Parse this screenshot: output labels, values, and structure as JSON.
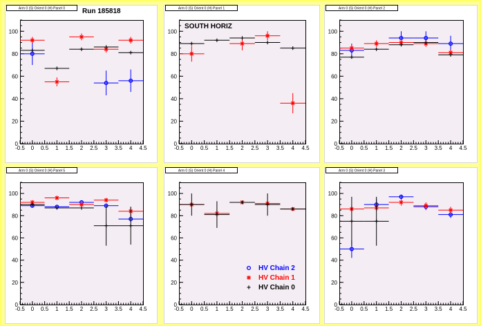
{
  "chart_data": [
    {
      "type": "scatter",
      "title": "Arm 0 (S) Orient 0 (H) Panel 0",
      "annotation": "Run 185818",
      "xlim": [
        -0.5,
        4.5
      ],
      "ylim": [
        0,
        110
      ],
      "xticks": [
        "-0.5",
        "0",
        "0.5",
        "1",
        "1.5",
        "2",
        "2.5",
        "3",
        "3.5",
        "4",
        "4.5"
      ],
      "yticks": [
        "0",
        "20",
        "40",
        "60",
        "80",
        "100"
      ],
      "series": [
        {
          "color": "#0000ff",
          "marker": "circle",
          "points": [
            {
              "x": 0,
              "y": 80,
              "err": 10
            },
            {
              "x": 3,
              "y": 54,
              "err": 11
            },
            {
              "x": 4,
              "y": 56,
              "err": 10
            }
          ]
        },
        {
          "color": "#ff0000",
          "marker": "star",
          "points": [
            {
              "x": 0,
              "y": 92,
              "err": 3
            },
            {
              "x": 1,
              "y": 55,
              "err": 4
            },
            {
              "x": 2,
              "y": 95,
              "err": 3
            },
            {
              "x": 3,
              "y": 84,
              "err": 3
            },
            {
              "x": 4,
              "y": 92,
              "err": 3
            }
          ]
        },
        {
          "color": "#000000",
          "marker": "cross",
          "points": [
            {
              "x": 0,
              "y": 83,
              "err": 0
            },
            {
              "x": 1,
              "y": 67,
              "err": 0
            },
            {
              "x": 2,
              "y": 84,
              "err": 0
            },
            {
              "x": 3,
              "y": 86,
              "err": 0
            },
            {
              "x": 4,
              "y": 81,
              "err": 0
            }
          ]
        }
      ]
    },
    {
      "type": "scatter",
      "title": "Arm 0 (S) Orient 0 (H) Panel 1",
      "annotation": "SOUTH HORIZ",
      "xlim": [
        -0.5,
        4.5
      ],
      "ylim": [
        0,
        110
      ],
      "xticks": [
        "-0.5",
        "0",
        "0.5",
        "1",
        "1.5",
        "2",
        "2.5",
        "3",
        "3.5",
        "4",
        "4.5"
      ],
      "yticks": [
        "0",
        "20",
        "40",
        "60",
        "80",
        "100"
      ],
      "series": [
        {
          "color": "#0000ff",
          "marker": "circle",
          "points": []
        },
        {
          "color": "#ff0000",
          "marker": "star",
          "points": [
            {
              "x": 0,
              "y": 80,
              "err": 7
            },
            {
              "x": 2,
              "y": 89,
              "err": 6
            },
            {
              "x": 3,
              "y": 96,
              "err": 4
            },
            {
              "x": 4,
              "y": 36,
              "err": 9
            }
          ]
        },
        {
          "color": "#000000",
          "marker": "cross",
          "points": [
            {
              "x": 0,
              "y": 89,
              "err": 0
            },
            {
              "x": 1,
              "y": 92,
              "err": 0
            },
            {
              "x": 2,
              "y": 94,
              "err": 0
            },
            {
              "x": 3,
              "y": 90,
              "err": 0
            },
            {
              "x": 4,
              "y": 85,
              "err": 0
            }
          ]
        }
      ]
    },
    {
      "type": "scatter",
      "title": "Arm 0 (S) Orient 0 (H) Panel 2",
      "annotation": "",
      "xlim": [
        -0.5,
        4.5
      ],
      "ylim": [
        0,
        110
      ],
      "xticks": [
        "-0.5",
        "0",
        "0.5",
        "1",
        "1.5",
        "2",
        "2.5",
        "3",
        "3.5",
        "4",
        "4.5"
      ],
      "yticks": [
        "0",
        "20",
        "40",
        "60",
        "80",
        "100"
      ],
      "series": [
        {
          "color": "#0000ff",
          "marker": "circle",
          "points": [
            {
              "x": 0,
              "y": 83,
              "err": 6
            },
            {
              "x": 2,
              "y": 94,
              "err": 6
            },
            {
              "x": 3,
              "y": 94,
              "err": 6
            },
            {
              "x": 4,
              "y": 89,
              "err": 7
            }
          ]
        },
        {
          "color": "#ff0000",
          "marker": "star",
          "points": [
            {
              "x": 0,
              "y": 85,
              "err": 3
            },
            {
              "x": 1,
              "y": 89,
              "err": 3
            },
            {
              "x": 2,
              "y": 90,
              "err": 3
            },
            {
              "x": 3,
              "y": 89,
              "err": 3
            },
            {
              "x": 4,
              "y": 81,
              "err": 3
            }
          ]
        },
        {
          "color": "#000000",
          "marker": "cross",
          "points": [
            {
              "x": 0,
              "y": 77,
              "err": 0
            },
            {
              "x": 1,
              "y": 84,
              "err": 0
            },
            {
              "x": 2,
              "y": 88,
              "err": 0
            },
            {
              "x": 3,
              "y": 90,
              "err": 0
            },
            {
              "x": 4,
              "y": 79,
              "err": 0
            }
          ]
        }
      ]
    },
    {
      "type": "scatter",
      "title": "Arm 0 (S) Orient 0 (H) Panel 5",
      "annotation": "",
      "xlim": [
        -0.5,
        4.5
      ],
      "ylim": [
        0,
        110
      ],
      "xticks": [
        "-0.5",
        "0",
        "0.5",
        "1",
        "1.5",
        "2",
        "2.5",
        "3",
        "3.5",
        "4",
        "4.5"
      ],
      "yticks": [
        "0",
        "20",
        "40",
        "60",
        "80",
        "100"
      ],
      "series": [
        {
          "color": "#0000ff",
          "marker": "circle",
          "points": [
            {
              "x": 0,
              "y": 89,
              "err": 1
            },
            {
              "x": 1,
              "y": 88,
              "err": 1
            },
            {
              "x": 2,
              "y": 92,
              "err": 1
            },
            {
              "x": 3,
              "y": 89,
              "err": 2
            },
            {
              "x": 4,
              "y": 77,
              "err": 3
            }
          ]
        },
        {
          "color": "#ff0000",
          "marker": "star",
          "points": [
            {
              "x": 0,
              "y": 92,
              "err": 2
            },
            {
              "x": 1,
              "y": 96,
              "err": 2
            },
            {
              "x": 2,
              "y": 90,
              "err": 3
            },
            {
              "x": 3,
              "y": 94,
              "err": 2
            },
            {
              "x": 4,
              "y": 84,
              "err": 4
            }
          ]
        },
        {
          "color": "#000000",
          "marker": "cross",
          "points": [
            {
              "x": 0,
              "y": 90,
              "err": 0
            },
            {
              "x": 1,
              "y": 87,
              "err": 0
            },
            {
              "x": 2,
              "y": 87,
              "err": 0
            },
            {
              "x": 3,
              "y": 71,
              "err": 18
            },
            {
              "x": 4,
              "y": 71,
              "err": 17
            }
          ]
        }
      ]
    },
    {
      "type": "scatter",
      "title": "Arm 0 (S) Orient 0 (H) Panel 4",
      "annotation": "",
      "xlim": [
        -0.5,
        4.5
      ],
      "ylim": [
        0,
        110
      ],
      "xticks": [
        "-0.5",
        "0",
        "0.5",
        "1",
        "1.5",
        "2",
        "2.5",
        "3",
        "3.5",
        "4",
        "4.5"
      ],
      "yticks": [
        "0",
        "20",
        "40",
        "60",
        "80",
        "100"
      ],
      "legend": {
        "position": "bottom-right",
        "entries": [
          {
            "label": "HV Chain 2",
            "color": "#0000ff",
            "marker": "circle"
          },
          {
            "label": "HV Chain 1",
            "color": "#ff0000",
            "marker": "star"
          },
          {
            "label": "HV Chain 0",
            "color": "#000000",
            "marker": "cross"
          }
        ]
      },
      "series": [
        {
          "color": "#0000ff",
          "marker": "circle",
          "points": []
        },
        {
          "color": "#ff0000",
          "marker": "star",
          "points": [
            {
              "x": 0,
              "y": 90,
              "err": 2
            },
            {
              "x": 1,
              "y": 82,
              "err": 3
            },
            {
              "x": 2,
              "y": 92,
              "err": 1
            },
            {
              "x": 3,
              "y": 91,
              "err": 2
            },
            {
              "x": 4,
              "y": 86,
              "err": 1
            }
          ]
        },
        {
          "color": "#000000",
          "marker": "cross",
          "points": [
            {
              "x": 0,
              "y": 90,
              "err": 10
            },
            {
              "x": 1,
              "y": 81,
              "err": 12
            },
            {
              "x": 2,
              "y": 92,
              "err": 0
            },
            {
              "x": 3,
              "y": 90,
              "err": 10
            },
            {
              "x": 4,
              "y": 86,
              "err": 0
            }
          ]
        }
      ]
    },
    {
      "type": "scatter",
      "title": "Arm 0 (S) Orient 0 (H) Panel 3",
      "annotation": "",
      "xlim": [
        -0.5,
        4.5
      ],
      "ylim": [
        0,
        110
      ],
      "xticks": [
        "-0.5",
        "0",
        "0.5",
        "1",
        "1.5",
        "2",
        "2.5",
        "3",
        "3.5",
        "4",
        "4.5"
      ],
      "yticks": [
        "0",
        "20",
        "40",
        "60",
        "80",
        "100"
      ],
      "series": [
        {
          "color": "#0000ff",
          "marker": "circle",
          "points": [
            {
              "x": 0,
              "y": 50,
              "err": 8
            },
            {
              "x": 1,
              "y": 90,
              "err": 5
            },
            {
              "x": 2,
              "y": 97,
              "err": 2
            },
            {
              "x": 3,
              "y": 88,
              "err": 3
            },
            {
              "x": 4,
              "y": 81,
              "err": 3
            }
          ]
        },
        {
          "color": "#ff0000",
          "marker": "star",
          "points": [
            {
              "x": 0,
              "y": 86,
              "err": 3
            },
            {
              "x": 1,
              "y": 87,
              "err": 3
            },
            {
              "x": 2,
              "y": 92,
              "err": 3
            },
            {
              "x": 3,
              "y": 89,
              "err": 3
            },
            {
              "x": 4,
              "y": 85,
              "err": 3
            }
          ]
        },
        {
          "color": "#000000",
          "marker": "cross",
          "points": [
            {
              "x": 0,
              "y": 75,
              "err": 22
            },
            {
              "x": 1,
              "y": 75,
              "err": 22
            }
          ]
        }
      ]
    }
  ]
}
